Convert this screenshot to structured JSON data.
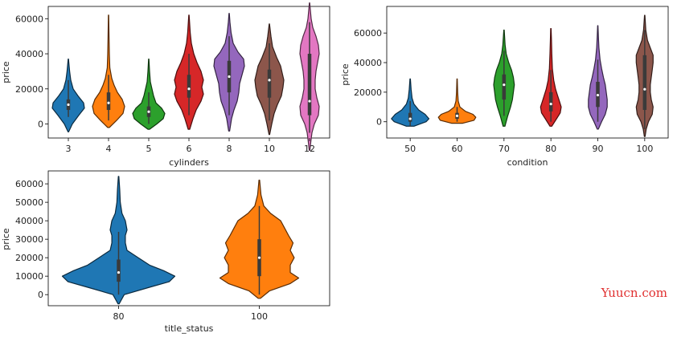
{
  "watermark": "Yuucn.com",
  "chart_data": [
    {
      "type": "violin",
      "xlabel": "cylinders",
      "ylabel": "price",
      "ylim": [
        -8000,
        67000
      ],
      "yticks": [
        0,
        20000,
        40000,
        60000
      ],
      "categories": [
        "3",
        "4",
        "5",
        "6",
        "8",
        "10",
        "12"
      ],
      "colors": [
        "#1f77b4",
        "#ff7f0e",
        "#2ca02c",
        "#d62728",
        "#9467bd",
        "#8c564b",
        "#e377c2"
      ],
      "violins": [
        {
          "min": -4500,
          "max": 37000,
          "q1": 8000,
          "median": 11000,
          "q3": 14000,
          "whisker_low": 4000,
          "whisker_high": 25000,
          "profile": [
            [
              -4500,
              0.02
            ],
            [
              0,
              0.25
            ],
            [
              5000,
              0.65
            ],
            [
              9000,
              1.0
            ],
            [
              12000,
              0.95
            ],
            [
              16000,
              0.6
            ],
            [
              20000,
              0.3
            ],
            [
              25000,
              0.15
            ],
            [
              30000,
              0.08
            ],
            [
              37000,
              0.01
            ]
          ]
        },
        {
          "min": -2000,
          "max": 62000,
          "q1": 8000,
          "median": 12000,
          "q3": 18000,
          "whisker_low": 2000,
          "whisker_high": 28000,
          "profile": [
            [
              -2000,
              0.05
            ],
            [
              2000,
              0.5
            ],
            [
              6000,
              0.9
            ],
            [
              10000,
              1.0
            ],
            [
              14000,
              0.85
            ],
            [
              18000,
              0.55
            ],
            [
              22000,
              0.35
            ],
            [
              26000,
              0.2
            ],
            [
              32000,
              0.08
            ],
            [
              40000,
              0.05
            ],
            [
              50000,
              0.03
            ],
            [
              62000,
              0.01
            ]
          ]
        },
        {
          "min": -3000,
          "max": 37000,
          "q1": 4000,
          "median": 7000,
          "q3": 10000,
          "whisker_low": 0,
          "whisker_high": 18000,
          "profile": [
            [
              -3000,
              0.05
            ],
            [
              0,
              0.5
            ],
            [
              3000,
              0.9
            ],
            [
              6000,
              1.0
            ],
            [
              9000,
              0.8
            ],
            [
              12000,
              0.45
            ],
            [
              16000,
              0.3
            ],
            [
              20000,
              0.2
            ],
            [
              24000,
              0.1
            ],
            [
              30000,
              0.05
            ],
            [
              37000,
              0.01
            ]
          ]
        },
        {
          "min": -3000,
          "max": 62000,
          "q1": 15000,
          "median": 20000,
          "q3": 28000,
          "whisker_low": 5000,
          "whisker_high": 40000,
          "profile": [
            [
              -3000,
              0.05
            ],
            [
              3000,
              0.25
            ],
            [
              8000,
              0.45
            ],
            [
              13000,
              0.75
            ],
            [
              17000,
              0.9
            ],
            [
              21000,
              0.8
            ],
            [
              25000,
              0.9
            ],
            [
              30000,
              0.75
            ],
            [
              35000,
              0.5
            ],
            [
              40000,
              0.3
            ],
            [
              46000,
              0.15
            ],
            [
              52000,
              0.08
            ],
            [
              62000,
              0.01
            ]
          ]
        },
        {
          "min": -4000,
          "max": 63000,
          "q1": 18000,
          "median": 27000,
          "q3": 36000,
          "whisker_low": 5000,
          "whisker_high": 50000,
          "profile": [
            [
              -4000,
              0.03
            ],
            [
              3000,
              0.15
            ],
            [
              8000,
              0.3
            ],
            [
              13000,
              0.5
            ],
            [
              18000,
              0.6
            ],
            [
              23000,
              0.65
            ],
            [
              28000,
              0.8
            ],
            [
              33000,
              0.95
            ],
            [
              37000,
              0.9
            ],
            [
              41000,
              0.55
            ],
            [
              46000,
              0.25
            ],
            [
              52000,
              0.12
            ],
            [
              58000,
              0.05
            ],
            [
              63000,
              0.01
            ]
          ]
        },
        {
          "min": -6000,
          "max": 57000,
          "q1": 15000,
          "median": 25000,
          "q3": 31000,
          "whisker_low": 2000,
          "whisker_high": 46000,
          "profile": [
            [
              -6000,
              0.02
            ],
            [
              0,
              0.15
            ],
            [
              6000,
              0.3
            ],
            [
              11000,
              0.5
            ],
            [
              16000,
              0.75
            ],
            [
              21000,
              0.85
            ],
            [
              25000,
              0.9
            ],
            [
              29000,
              0.8
            ],
            [
              33000,
              0.7
            ],
            [
              38000,
              0.45
            ],
            [
              44000,
              0.2
            ],
            [
              50000,
              0.1
            ],
            [
              57000,
              0.01
            ]
          ]
        },
        {
          "min": -15000,
          "max": 69000,
          "q1": 5000,
          "median": 13000,
          "q3": 40000,
          "whisker_low": -5000,
          "whisker_high": 58000,
          "profile": [
            [
              -15000,
              0.02
            ],
            [
              -10000,
              0.08
            ],
            [
              -5000,
              0.15
            ],
            [
              0,
              0.3
            ],
            [
              5000,
              0.55
            ],
            [
              10000,
              0.6
            ],
            [
              15000,
              0.45
            ],
            [
              20000,
              0.35
            ],
            [
              25000,
              0.35
            ],
            [
              30000,
              0.4
            ],
            [
              35000,
              0.5
            ],
            [
              40000,
              0.6
            ],
            [
              45000,
              0.55
            ],
            [
              50000,
              0.4
            ],
            [
              55000,
              0.2
            ],
            [
              60000,
              0.1
            ],
            [
              65000,
              0.05
            ],
            [
              69000,
              0.01
            ]
          ]
        }
      ]
    },
    {
      "type": "violin",
      "xlabel": "condition",
      "ylabel": "price",
      "ylim": [
        -11000,
        78000
      ],
      "yticks": [
        0,
        20000,
        40000,
        60000
      ],
      "categories": [
        "50",
        "60",
        "70",
        "80",
        "90",
        "100"
      ],
      "colors": [
        "#1f77b4",
        "#ff7f0e",
        "#2ca02c",
        "#d62728",
        "#9467bd",
        "#8c564b"
      ],
      "violins": [
        {
          "min": -3000,
          "max": 29000,
          "q1": 0,
          "median": 2000,
          "q3": 6000,
          "whisker_low": -3000,
          "whisker_high": 14000,
          "profile": [
            [
              -3000,
              0.2
            ],
            [
              0,
              0.85
            ],
            [
              2000,
              1.0
            ],
            [
              5000,
              0.8
            ],
            [
              8000,
              0.45
            ],
            [
              12000,
              0.2
            ],
            [
              16000,
              0.1
            ],
            [
              22000,
              0.05
            ],
            [
              29000,
              0.01
            ]
          ]
        },
        {
          "min": -1000,
          "max": 29000,
          "q1": 2000,
          "median": 4000,
          "q3": 6000,
          "whisker_low": 0,
          "whisker_high": 10000,
          "profile": [
            [
              -1000,
              0.3
            ],
            [
              1000,
              0.9
            ],
            [
              3000,
              1.0
            ],
            [
              5000,
              0.85
            ],
            [
              7000,
              0.45
            ],
            [
              10000,
              0.15
            ],
            [
              14000,
              0.06
            ],
            [
              20000,
              0.03
            ],
            [
              29000,
              0.01
            ]
          ]
        },
        {
          "min": -3000,
          "max": 62000,
          "q1": 15000,
          "median": 25000,
          "q3": 32000,
          "whisker_low": 4000,
          "whisker_high": 48000,
          "profile": [
            [
              -3000,
              0.05
            ],
            [
              4000,
              0.2
            ],
            [
              10000,
              0.35
            ],
            [
              15000,
              0.45
            ],
            [
              20000,
              0.5
            ],
            [
              25000,
              0.55
            ],
            [
              30000,
              0.5
            ],
            [
              35000,
              0.4
            ],
            [
              40000,
              0.25
            ],
            [
              46000,
              0.12
            ],
            [
              52000,
              0.06
            ],
            [
              62000,
              0.01
            ]
          ]
        },
        {
          "min": -3000,
          "max": 63000,
          "q1": 7000,
          "median": 12000,
          "q3": 20000,
          "whisker_low": 0,
          "whisker_high": 35000,
          "profile": [
            [
              -3000,
              0.05
            ],
            [
              2000,
              0.3
            ],
            [
              6000,
              0.5
            ],
            [
              10000,
              0.55
            ],
            [
              14000,
              0.45
            ],
            [
              18000,
              0.35
            ],
            [
              22000,
              0.25
            ],
            [
              28000,
              0.15
            ],
            [
              36000,
              0.08
            ],
            [
              46000,
              0.05
            ],
            [
              55000,
              0.03
            ],
            [
              63000,
              0.01
            ]
          ]
        },
        {
          "min": -5000,
          "max": 65000,
          "q1": 10000,
          "median": 18000,
          "q3": 27000,
          "whisker_low": 0,
          "whisker_high": 42000,
          "profile": [
            [
              -5000,
              0.03
            ],
            [
              0,
              0.2
            ],
            [
              5000,
              0.4
            ],
            [
              10000,
              0.5
            ],
            [
              15000,
              0.5
            ],
            [
              20000,
              0.45
            ],
            [
              25000,
              0.4
            ],
            [
              30000,
              0.3
            ],
            [
              36000,
              0.2
            ],
            [
              42000,
              0.12
            ],
            [
              50000,
              0.06
            ],
            [
              58000,
              0.03
            ],
            [
              65000,
              0.01
            ]
          ]
        },
        {
          "min": -10000,
          "max": 72000,
          "q1": 8000,
          "median": 22000,
          "q3": 45000,
          "whisker_low": -5000,
          "whisker_high": 62000,
          "profile": [
            [
              -10000,
              0.02
            ],
            [
              -5000,
              0.08
            ],
            [
              0,
              0.2
            ],
            [
              5000,
              0.4
            ],
            [
              10000,
              0.45
            ],
            [
              15000,
              0.35
            ],
            [
              20000,
              0.3
            ],
            [
              25000,
              0.3
            ],
            [
              30000,
              0.35
            ],
            [
              35000,
              0.4
            ],
            [
              40000,
              0.45
            ],
            [
              45000,
              0.45
            ],
            [
              50000,
              0.3
            ],
            [
              55000,
              0.15
            ],
            [
              62000,
              0.06
            ],
            [
              72000,
              0.01
            ]
          ]
        }
      ]
    },
    {
      "type": "violin",
      "xlabel": "title_status",
      "ylabel": "price",
      "ylim": [
        -6000,
        67000
      ],
      "yticks": [
        0,
        10000,
        20000,
        30000,
        40000,
        50000,
        60000
      ],
      "categories": [
        "80",
        "100"
      ],
      "colors": [
        "#1f77b4",
        "#ff7f0e"
      ],
      "violins": [
        {
          "min": -5000,
          "max": 64000,
          "q1": 7000,
          "median": 12000,
          "q3": 19000,
          "whisker_low": 0,
          "whisker_high": 34000,
          "profile": [
            [
              -5000,
              0.01
            ],
            [
              0,
              0.1
            ],
            [
              4000,
              0.55
            ],
            [
              7000,
              0.9
            ],
            [
              10000,
              1.0
            ],
            [
              13000,
              0.8
            ],
            [
              16000,
              0.55
            ],
            [
              20000,
              0.35
            ],
            [
              24000,
              0.15
            ],
            [
              28000,
              0.12
            ],
            [
              32000,
              0.12
            ],
            [
              35000,
              0.15
            ],
            [
              40000,
              0.12
            ],
            [
              44000,
              0.06
            ],
            [
              50000,
              0.03
            ],
            [
              57000,
              0.02
            ],
            [
              64000,
              0.005
            ]
          ]
        },
        {
          "min": -2000,
          "max": 62000,
          "q1": 10000,
          "median": 20000,
          "q3": 30000,
          "whisker_low": 0,
          "whisker_high": 48000,
          "profile": [
            [
              -2000,
              0.02
            ],
            [
              2000,
              0.18
            ],
            [
              6000,
              0.55
            ],
            [
              9000,
              0.7
            ],
            [
              12000,
              0.55
            ],
            [
              16000,
              0.55
            ],
            [
              20000,
              0.62
            ],
            [
              24000,
              0.55
            ],
            [
              28000,
              0.6
            ],
            [
              32000,
              0.52
            ],
            [
              36000,
              0.45
            ],
            [
              40000,
              0.38
            ],
            [
              44000,
              0.2
            ],
            [
              48000,
              0.08
            ],
            [
              54000,
              0.03
            ],
            [
              62000,
              0.005
            ]
          ]
        }
      ]
    }
  ]
}
